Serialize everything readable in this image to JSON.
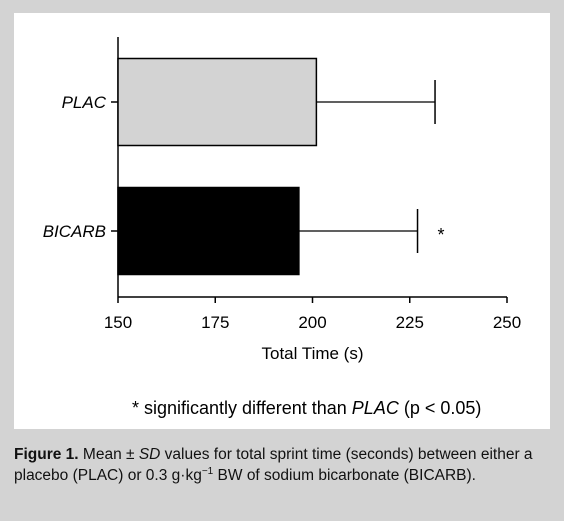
{
  "chart_data": {
    "type": "bar",
    "orientation": "horizontal",
    "categories": [
      "PLAC",
      "BICARB"
    ],
    "values": [
      201,
      196.5
    ],
    "errors": [
      30.5,
      30.5
    ],
    "xlabel": "Total Time (s)",
    "xlim": [
      150,
      250
    ],
    "xticks": [
      "150",
      "175",
      "200",
      "225",
      "250"
    ],
    "bar_colors": [
      "#d3d3d3",
      "#000000"
    ],
    "grid": false,
    "annotations": [
      {
        "category": "BICARB",
        "text": "*"
      }
    ]
  },
  "footnote": {
    "prefix": "* significantly different than ",
    "term": "PLAC",
    "suffix": " (p < 0.05)"
  },
  "caption": {
    "label": "Figure 1.",
    "t1": " Mean ± ",
    "sd": "SD",
    "t2": " values for total sprint time (seconds) between either a placebo (PLAC) or 0.3 g·kg",
    "sup": "−1",
    "t3": " BW of sodium bicarbonate (BICARB)."
  }
}
